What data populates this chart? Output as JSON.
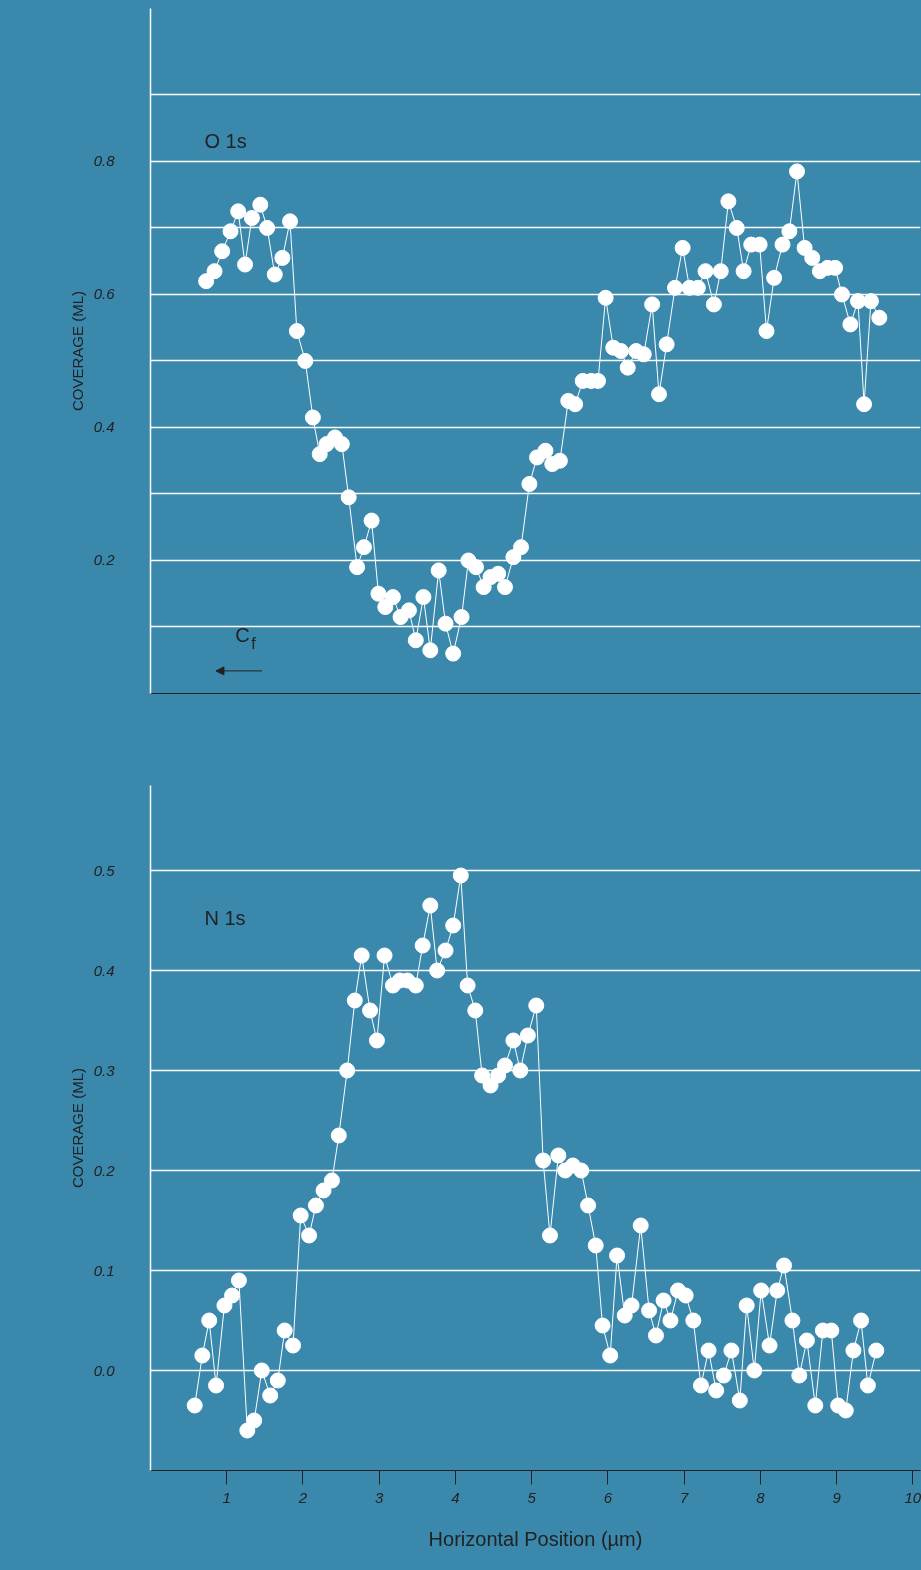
{
  "chart_data": [
    {
      "type": "line",
      "title": "O 1s",
      "ylabel": "COVERAGE (ML)",
      "annotations": [
        "C$_{f}$"
      ],
      "marker": "circle",
      "line_style": "solid",
      "grid": "y",
      "tick_labels": "y",
      "xlim": [
        0,
        10.1
      ],
      "ylim": [
        0,
        1.03
      ],
      "yticks": [
        {
          "value": 0.1,
          "label": null
        },
        0.2,
        {
          "value": 0.3,
          "label": null
        },
        0.4,
        {
          "value": 0.5,
          "label": null
        },
        0.6,
        {
          "value": 0.7,
          "label": null
        },
        0.8,
        {
          "value": 0.9,
          "label": null
        }
      ],
      "series": [
        {
          "color": "#ffffff",
          "x": [
            0.73,
            0.84,
            0.94,
            1.05,
            1.15,
            1.24,
            1.33,
            1.44,
            1.53,
            1.63,
            1.73,
            1.83,
            1.92,
            2.03,
            2.13,
            2.22,
            2.31,
            2.42,
            2.51,
            2.6,
            2.71,
            2.8,
            2.9,
            2.99,
            3.08,
            3.18,
            3.28,
            3.39,
            3.48,
            3.58,
            3.67,
            3.78,
            3.87,
            3.97,
            4.08,
            4.17,
            4.27,
            4.37,
            4.46,
            4.56,
            4.65,
            4.76,
            4.86,
            4.97,
            5.07,
            5.18,
            5.27,
            5.37,
            5.48,
            5.57,
            5.67,
            5.78,
            5.87,
            5.97,
            6.07,
            6.17,
            6.26,
            6.37,
            6.47,
            6.58,
            6.67,
            6.77,
            6.88,
            6.98,
            7.07,
            7.18,
            7.28,
            7.39,
            7.48,
            7.58,
            7.69,
            7.78,
            7.88,
            7.99,
            8.08,
            8.18,
            8.29,
            8.38,
            8.48,
            8.58,
            8.68,
            8.78,
            8.88,
            8.98,
            9.07,
            9.18,
            9.28,
            9.36,
            9.45,
            9.56
          ],
          "values": [
            0.62,
            0.635,
            0.665,
            0.695,
            0.725,
            0.645,
            0.715,
            0.735,
            0.7,
            0.63,
            0.655,
            0.71,
            0.545,
            0.5,
            0.415,
            0.36,
            0.375,
            0.385,
            0.375,
            0.295,
            0.19,
            0.22,
            0.26,
            0.15,
            0.13,
            0.145,
            0.115,
            0.125,
            0.08,
            0.145,
            0.065,
            0.185,
            0.105,
            0.06,
            0.115,
            0.2,
            0.19,
            0.16,
            0.175,
            0.18,
            0.16,
            0.205,
            0.22,
            0.315,
            0.355,
            0.365,
            0.345,
            0.35,
            0.44,
            0.435,
            0.47,
            0.47,
            0.47,
            0.595,
            0.52,
            0.515,
            0.49,
            0.515,
            0.51,
            0.585,
            0.45,
            0.525,
            0.61,
            0.67,
            0.61,
            0.61,
            0.635,
            0.585,
            0.635,
            0.74,
            0.7,
            0.635,
            0.675,
            0.675,
            0.545,
            0.625,
            0.675,
            0.695,
            0.785,
            0.67,
            0.655,
            0.635,
            0.64,
            0.64,
            0.6,
            0.555,
            0.59,
            0.435,
            0.59,
            0.565
          ]
        }
      ]
    },
    {
      "type": "line",
      "title": "N 1s",
      "ylabel": "COVERAGE (ML)",
      "xlabel": "Horizontal Position (µm)",
      "marker": "circle",
      "line_style": "solid",
      "grid": "y",
      "xlim": [
        0,
        10.1
      ],
      "ylim": [
        -0.1,
        0.585
      ],
      "xticks": [
        1,
        2,
        3,
        4,
        5,
        6,
        7,
        8,
        9,
        10
      ],
      "yticks": [
        {
          "value": 0,
          "label": "0.0"
        },
        0.1,
        0.2,
        0.3,
        0.4,
        0.5
      ],
      "series": [
        {
          "color": "#ffffff",
          "x": [
            0.58,
            0.68,
            0.77,
            0.86,
            0.97,
            1.07,
            1.16,
            1.27,
            1.36,
            1.46,
            1.57,
            1.67,
            1.76,
            1.87,
            1.97,
            2.08,
            2.17,
            2.27,
            2.38,
            2.47,
            2.58,
            2.68,
            2.77,
            2.88,
            2.97,
            3.07,
            3.18,
            3.27,
            3.37,
            3.48,
            3.57,
            3.67,
            3.76,
            3.87,
            3.97,
            4.07,
            4.16,
            4.26,
            4.35,
            4.46,
            4.56,
            4.65,
            4.76,
            4.85,
            4.95,
            5.06,
            5.15,
            5.24,
            5.35,
            5.44,
            5.54,
            5.65,
            5.74,
            5.84,
            5.93,
            6.03,
            6.12,
            6.22,
            6.31,
            6.43,
            6.54,
            6.63,
            6.73,
            6.82,
            6.92,
            7.02,
            7.12,
            7.22,
            7.32,
            7.42,
            7.52,
            7.62,
            7.73,
            7.82,
            7.92,
            8.01,
            8.12,
            8.22,
            8.31,
            8.42,
            8.51,
            8.61,
            8.72,
            8.82,
            8.93,
            9.02,
            9.12,
            9.22,
            9.32,
            9.41,
            9.52
          ],
          "values": [
            -0.035,
            0.015,
            0.05,
            -0.015,
            0.065,
            0.075,
            0.09,
            -0.06,
            -0.05,
            0.0,
            -0.025,
            -0.01,
            0.04,
            0.025,
            0.155,
            0.135,
            0.165,
            0.18,
            0.19,
            0.235,
            0.3,
            0.37,
            0.415,
            0.36,
            0.33,
            0.415,
            0.385,
            0.39,
            0.39,
            0.385,
            0.425,
            0.465,
            0.4,
            0.42,
            0.445,
            0.495,
            0.385,
            0.36,
            0.295,
            0.285,
            0.295,
            0.305,
            0.33,
            0.3,
            0.335,
            0.365,
            0.21,
            0.135,
            0.215,
            0.2,
            0.205,
            0.2,
            0.165,
            0.125,
            0.045,
            0.015,
            0.115,
            0.055,
            0.065,
            0.145,
            0.06,
            0.035,
            0.07,
            0.05,
            0.08,
            0.075,
            0.05,
            -0.015,
            0.02,
            -0.02,
            -0.005,
            0.02,
            -0.03,
            0.065,
            0.0,
            0.08,
            0.025,
            0.08,
            0.105,
            0.05,
            -0.005,
            0.03,
            -0.035,
            0.04,
            0.04,
            -0.035,
            -0.04,
            0.02,
            0.05,
            -0.015,
            0.02
          ]
        }
      ]
    }
  ]
}
